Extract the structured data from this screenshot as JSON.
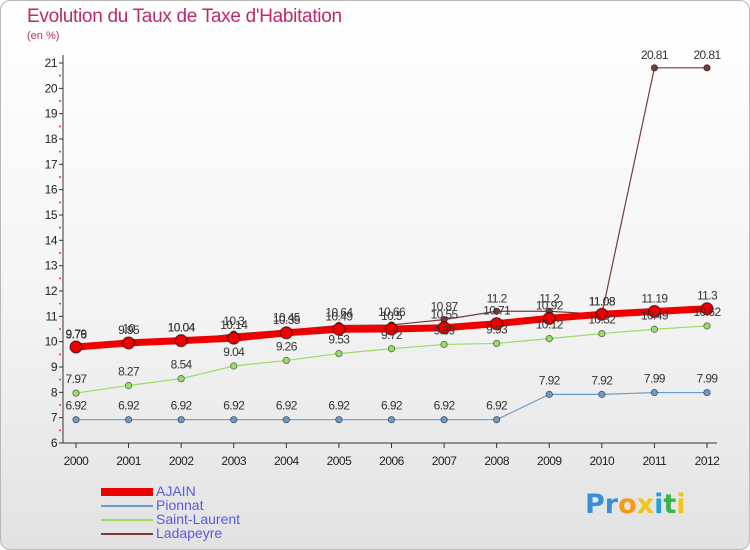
{
  "title": "Evolution du Taux de Taxe d'Habitation",
  "subtitle": "(en %)",
  "brand": {
    "letters": [
      "P",
      "r",
      "o",
      "x",
      "i",
      "t",
      "i"
    ],
    "colors": [
      "#3b8fd8",
      "#3b8fd8",
      "#f39c12",
      "#f0c419",
      "#1ea0e0",
      "#3ab54a",
      "#f0c419"
    ]
  },
  "legend": [
    {
      "label": "AJAIN",
      "color": "#ee0000"
    },
    {
      "label": "Pionnat",
      "color": "#6b9bc8"
    },
    {
      "label": "Saint-Laurent",
      "color": "#99dd66"
    },
    {
      "label": "Ladapeyre",
      "color": "#7a3a3a"
    }
  ],
  "chart_data": {
    "type": "line",
    "ylabel": "(en %)",
    "ylim": [
      6,
      21
    ],
    "yticks": [
      "6",
      "7",
      "8",
      "9",
      "10",
      "11",
      "12",
      "13",
      "14",
      "15",
      "16",
      "17",
      "18",
      "19",
      "20",
      "21"
    ],
    "x": [
      "2000",
      "2001",
      "2002",
      "2003",
      "2004",
      "2005",
      "2006",
      "2007",
      "2008",
      "2009",
      "2010",
      "2011",
      "2012"
    ],
    "series": [
      {
        "name": "Ladapeyre",
        "color": "#7a3a3a",
        "values": [
          9.76,
          10,
          10.04,
          10.3,
          10.45,
          10.64,
          10.66,
          10.87,
          11.2,
          11.2,
          11.08,
          20.81,
          20.81
        ],
        "labels": [
          "9.76",
          "10",
          "10.04",
          "10.3",
          "10.45",
          "10.64",
          "10.66",
          "10.87",
          "11.2",
          "11.2",
          "11.08",
          "20.81",
          "20.81"
        ]
      },
      {
        "name": "AJAIN",
        "color": "#ee0000",
        "values": [
          9.79,
          9.95,
          10.04,
          10.14,
          10.35,
          10.49,
          10.5,
          10.55,
          10.71,
          10.92,
          11.08,
          11.19,
          11.3
        ],
        "labels": [
          "9.79",
          "9.95",
          "10.04",
          "10.14",
          "10.35",
          "10.49",
          "10.5",
          "10.55",
          "10.71",
          "10.92",
          "11.08",
          "11.19",
          "11.3"
        ]
      },
      {
        "name": "Saint-Laurent",
        "color": "#99dd66",
        "values": [
          7.97,
          8.27,
          8.54,
          9.04,
          9.26,
          9.53,
          9.72,
          9.89,
          9.93,
          10.12,
          10.32,
          10.49,
          10.62
        ],
        "labels": [
          "7.97",
          "8.27",
          "8.54",
          "9.04",
          "9.26",
          "9.53",
          "9.72",
          "9.89",
          "9.93",
          "10.12",
          "10.32",
          "10.49",
          "10.62"
        ]
      },
      {
        "name": "Pionnat",
        "color": "#6b9bc8",
        "values": [
          6.92,
          6.92,
          6.92,
          6.92,
          6.92,
          6.92,
          6.92,
          6.92,
          6.92,
          7.92,
          7.92,
          7.99,
          7.99
        ],
        "labels": [
          "6.92",
          "6.92",
          "6.92",
          "6.92",
          "6.92",
          "6.92",
          "6.92",
          "6.92",
          "6.92",
          "7.92",
          "7.92",
          "7.99",
          "7.99"
        ]
      }
    ]
  }
}
